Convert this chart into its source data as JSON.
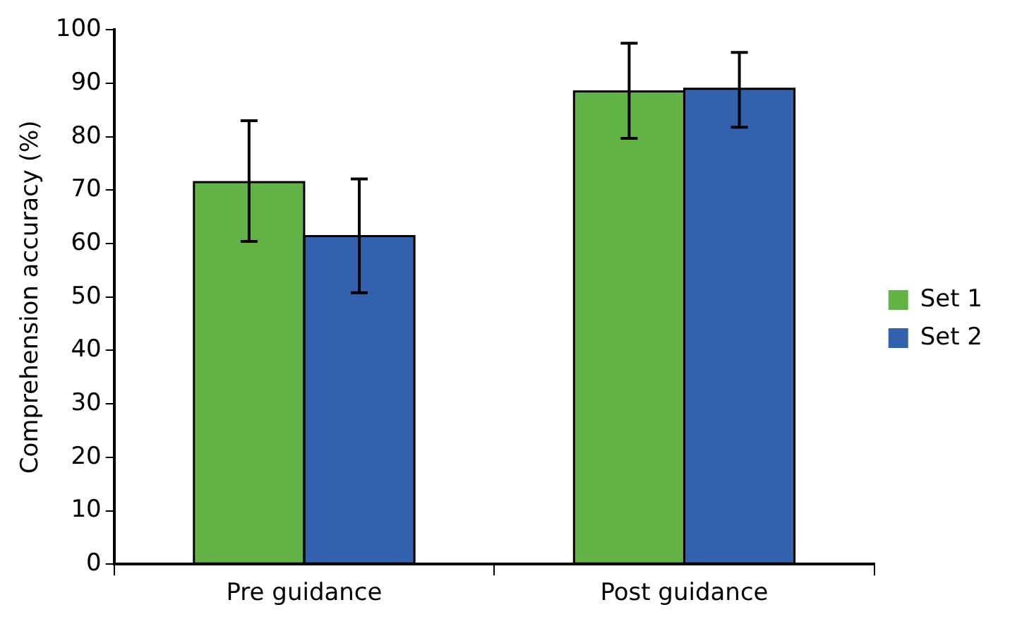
{
  "chart_data": {
    "type": "bar",
    "ylabel": "Comprehension accuracy (%)",
    "categories": [
      "Pre guidance",
      "Post guidance"
    ],
    "series": [
      {
        "name": "Set 1",
        "color": "#62b246",
        "values": [
          71.5,
          88.5
        ],
        "errors": [
          [
            60.4,
            83
          ],
          [
            79.7,
            97.5
          ]
        ]
      },
      {
        "name": "Set 2",
        "color": "#3361ad",
        "values": [
          61.4,
          89
        ],
        "errors": [
          [
            50.8,
            72.1
          ],
          [
            81.8,
            95.8
          ]
        ]
      }
    ],
    "ylim": [
      0,
      100
    ],
    "yticks": [
      0,
      10,
      20,
      30,
      40,
      50,
      60,
      70,
      80,
      90,
      100
    ],
    "grid": false,
    "legend": "right"
  }
}
